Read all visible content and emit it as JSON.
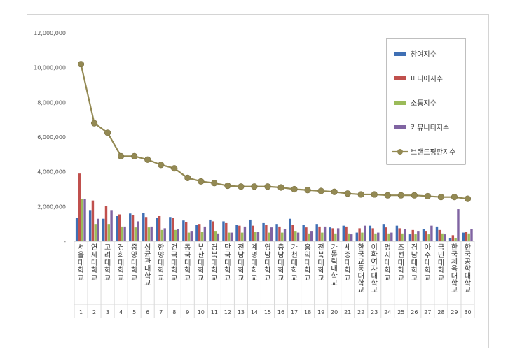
{
  "chart_data": {
    "type": "bar",
    "title": "",
    "xlabel": "",
    "ylabel": "",
    "ylim": [
      0,
      12000000
    ],
    "yticks": [
      "-",
      "2,000,000",
      "4,000,000",
      "6,000,000",
      "8,000,000",
      "10,000,000",
      "12,000,000"
    ],
    "legend_position": "top-right",
    "grid": false,
    "categories": [
      "서울대학교",
      "연세대학교",
      "고려대학교",
      "경희대학교",
      "중앙대학교",
      "성균관대학교",
      "한양대학교",
      "건국대학교",
      "동국대학교",
      "부산대학교",
      "경북대학교",
      "단국대학교",
      "전남대학교",
      "계명대학교",
      "영남대학교",
      "충남대학교",
      "가천대학교",
      "홍익대학교",
      "전북대학교",
      "가톨릭대학교",
      "세종대학교",
      "한국교통대학교",
      "이화여자대학교",
      "명지대학교",
      "조선대학교",
      "경남대학교",
      "아주대학교",
      "국민대학교",
      "한국체육대학교",
      "한국공학대학교"
    ],
    "ranks": [
      "1",
      "2",
      "3",
      "4",
      "5",
      "6",
      "7",
      "8",
      "9",
      "10",
      "11",
      "12",
      "13",
      "14",
      "15",
      "16",
      "17",
      "18",
      "19",
      "20",
      "21",
      "22",
      "23",
      "24",
      "25",
      "26",
      "27",
      "28",
      "29",
      "30"
    ],
    "series": [
      {
        "name": "참여지수",
        "kind": "bar",
        "color": "#3f6fb4",
        "values": [
          1350000,
          1800000,
          1300000,
          1450000,
          1600000,
          1650000,
          1350000,
          1400000,
          1200000,
          950000,
          1250000,
          1150000,
          950000,
          1250000,
          1050000,
          1000000,
          1300000,
          950000,
          1000000,
          800000,
          900000,
          500000,
          900000,
          1000000,
          900000,
          400000,
          700000,
          850000,
          200000,
          500000
        ]
      },
      {
        "name": "미디어지수",
        "kind": "bar",
        "color": "#c0504d",
        "values": [
          3900000,
          2350000,
          2050000,
          1550000,
          1500000,
          1400000,
          1450000,
          1350000,
          1100000,
          1000000,
          1150000,
          1050000,
          900000,
          900000,
          950000,
          850000,
          950000,
          800000,
          850000,
          750000,
          850000,
          750000,
          750000,
          800000,
          750000,
          650000,
          600000,
          650000,
          350000,
          550000
        ]
      },
      {
        "name": "소통지수",
        "kind": "bar",
        "color": "#9bbb59",
        "values": [
          2450000,
          1000000,
          1000000,
          850000,
          800000,
          800000,
          650000,
          650000,
          500000,
          550000,
          600000,
          500000,
          500000,
          550000,
          500000,
          500000,
          600000,
          450000,
          500000,
          450000,
          450000,
          500000,
          450000,
          450000,
          450000,
          400000,
          400000,
          450000,
          200000,
          450000
        ]
      },
      {
        "name": "커뮤니티지수",
        "kind": "bar",
        "color": "#8064a2",
        "values": [
          2450000,
          1300000,
          1800000,
          850000,
          1150000,
          850000,
          750000,
          700000,
          600000,
          850000,
          450000,
          500000,
          850000,
          550000,
          800000,
          700000,
          500000,
          600000,
          850000,
          750000,
          400000,
          900000,
          500000,
          500000,
          700000,
          600000,
          900000,
          400000,
          1850000,
          700000
        ]
      },
      {
        "name": "브랜드평판지수",
        "kind": "line",
        "color": "#938953",
        "values": [
          10200000,
          6800000,
          6250000,
          4900000,
          4900000,
          4700000,
          4400000,
          4200000,
          3650000,
          3450000,
          3350000,
          3200000,
          3150000,
          3150000,
          3150000,
          3100000,
          3000000,
          2950000,
          2900000,
          2850000,
          2750000,
          2700000,
          2700000,
          2650000,
          2650000,
          2650000,
          2600000,
          2550000,
          2550000,
          2450000
        ]
      }
    ]
  }
}
